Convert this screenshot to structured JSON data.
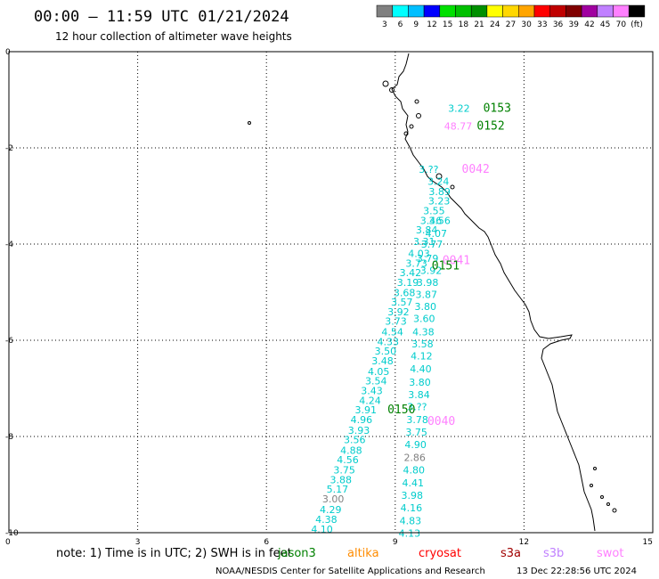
{
  "header": {
    "title": "00:00 – 11:59 UTC 01/21/2024",
    "subtitle": "12 hour collection of altimeter wave heights"
  },
  "colorbar": {
    "colors": [
      "#808080",
      "#00ffff",
      "#00bfff",
      "#0000ff",
      "#00e000",
      "#00c000",
      "#009000",
      "#ffff00",
      "#ffd700",
      "#ffa500",
      "#ff0000",
      "#c00000",
      "#800000",
      "#a000a0",
      "#c080ff",
      "#ff80ff",
      "#000000"
    ],
    "labels": [
      "3",
      "6",
      "9",
      "12",
      "15",
      "18",
      "21",
      "24",
      "27",
      "30",
      "33",
      "36",
      "39",
      "42",
      "45",
      "70",
      "(ft)"
    ]
  },
  "map": {
    "x_ticks": [
      "0",
      "3",
      "6",
      "9",
      "12",
      "15"
    ],
    "y_ticks": [
      "0",
      "-2",
      "-4",
      "-6",
      "-8",
      "-10"
    ],
    "x_range": [
      0,
      15
    ],
    "y_range": [
      -10,
      0
    ],
    "grid": "dotted"
  },
  "wave_labels": [
    {
      "x": 10.23,
      "y": -1.25,
      "text": "3.22",
      "color": "#00cccc"
    },
    {
      "x": 10.14,
      "y": -1.62,
      "text": "48.77",
      "color": "#ff80ff"
    },
    {
      "x": 9.55,
      "y": -2.52,
      "text": "3.??",
      "color": "#00cccc"
    },
    {
      "x": 9.75,
      "y": -2.77,
      "text": "3.24",
      "color": "#00cccc"
    },
    {
      "x": 9.78,
      "y": -2.98,
      "text": "3.89",
      "color": "#00cccc"
    },
    {
      "x": 9.77,
      "y": -3.18,
      "text": "3.23",
      "color": "#00cccc"
    },
    {
      "x": 9.65,
      "y": -3.38,
      "text": "3.55",
      "color": "#00cccc"
    },
    {
      "x": 9.58,
      "y": -3.58,
      "text": "3.46",
      "color": "#00cccc"
    },
    {
      "x": 9.48,
      "y": -3.78,
      "text": "3.84",
      "color": "#00cccc"
    },
    {
      "x": 9.78,
      "y": -3.58,
      "text": "3.56",
      "color": "#00cccc"
    },
    {
      "x": 9.7,
      "y": -3.85,
      "text": "4.07",
      "color": "#00cccc"
    },
    {
      "x": 9.42,
      "y": -4.02,
      "text": "3.31",
      "color": "#00cccc"
    },
    {
      "x": 9.6,
      "y": -4.07,
      "text": "3.77",
      "color": "#00cccc"
    },
    {
      "x": 9.3,
      "y": -4.27,
      "text": "4.03",
      "color": "#00cccc"
    },
    {
      "x": 9.5,
      "y": -4.37,
      "text": "3.79",
      "color": "#00cccc"
    },
    {
      "x": 9.24,
      "y": -4.47,
      "text": "3.73",
      "color": "#00cccc"
    },
    {
      "x": 9.58,
      "y": -4.62,
      "text": "3.92",
      "color": "#00cccc"
    },
    {
      "x": 9.1,
      "y": -4.67,
      "text": "3.42",
      "color": "#00cccc"
    },
    {
      "x": 9.04,
      "y": -4.87,
      "text": "3.19",
      "color": "#00cccc"
    },
    {
      "x": 9.5,
      "y": -4.87,
      "text": "3.98",
      "color": "#00cccc"
    },
    {
      "x": 8.96,
      "y": -5.08,
      "text": "3.68",
      "color": "#00cccc"
    },
    {
      "x": 9.47,
      "y": -5.12,
      "text": "3.87",
      "color": "#00cccc"
    },
    {
      "x": 8.9,
      "y": -5.28,
      "text": "3.57",
      "color": "#00cccc"
    },
    {
      "x": 9.45,
      "y": -5.37,
      "text": "3.80",
      "color": "#00cccc"
    },
    {
      "x": 8.82,
      "y": -5.48,
      "text": "3.92",
      "color": "#00cccc"
    },
    {
      "x": 9.42,
      "y": -5.62,
      "text": "3.60",
      "color": "#00cccc"
    },
    {
      "x": 8.76,
      "y": -5.68,
      "text": "3.73",
      "color": "#00cccc"
    },
    {
      "x": 9.4,
      "y": -5.9,
      "text": "4.38",
      "color": "#00cccc"
    },
    {
      "x": 8.68,
      "y": -5.9,
      "text": "4.54",
      "color": "#00cccc"
    },
    {
      "x": 8.58,
      "y": -6.1,
      "text": "4.33",
      "color": "#00cccc"
    },
    {
      "x": 9.38,
      "y": -6.15,
      "text": "3.58",
      "color": "#00cccc"
    },
    {
      "x": 8.52,
      "y": -6.3,
      "text": "3.50",
      "color": "#00cccc"
    },
    {
      "x": 9.36,
      "y": -6.4,
      "text": "4.12",
      "color": "#00cccc"
    },
    {
      "x": 8.45,
      "y": -6.5,
      "text": "3.48",
      "color": "#00cccc"
    },
    {
      "x": 9.34,
      "y": -6.67,
      "text": "4.40",
      "color": "#00cccc"
    },
    {
      "x": 8.36,
      "y": -6.72,
      "text": "4.05",
      "color": "#00cccc"
    },
    {
      "x": 8.3,
      "y": -6.92,
      "text": "3.54",
      "color": "#00cccc"
    },
    {
      "x": 9.32,
      "y": -6.94,
      "text": "3.80",
      "color": "#00cccc"
    },
    {
      "x": 8.2,
      "y": -7.12,
      "text": "3.43",
      "color": "#00cccc"
    },
    {
      "x": 9.3,
      "y": -7.2,
      "text": "3.84",
      "color": "#00cccc"
    },
    {
      "x": 8.16,
      "y": -7.32,
      "text": "4.24",
      "color": "#00cccc"
    },
    {
      "x": 9.28,
      "y": -7.45,
      "text": "3.??",
      "color": "#00cccc"
    },
    {
      "x": 8.06,
      "y": -7.52,
      "text": "3.91",
      "color": "#00cccc"
    },
    {
      "x": 9.26,
      "y": -7.72,
      "text": "3.78",
      "color": "#00cccc"
    },
    {
      "x": 7.96,
      "y": -7.72,
      "text": "4.96",
      "color": "#00cccc"
    },
    {
      "x": 7.9,
      "y": -7.94,
      "text": "3.93",
      "color": "#00cccc"
    },
    {
      "x": 9.24,
      "y": -7.98,
      "text": "3.75",
      "color": "#00cccc"
    },
    {
      "x": 7.8,
      "y": -8.14,
      "text": "3.56",
      "color": "#00cccc"
    },
    {
      "x": 9.22,
      "y": -8.24,
      "text": "4.90",
      "color": "#00cccc"
    },
    {
      "x": 7.72,
      "y": -8.36,
      "text": "4.88",
      "color": "#00cccc"
    },
    {
      "x": 9.2,
      "y": -8.51,
      "text": "2.86",
      "color": "#808080"
    },
    {
      "x": 7.64,
      "y": -8.56,
      "text": "4.56",
      "color": "#00cccc"
    },
    {
      "x": 7.56,
      "y": -8.77,
      "text": "3.75",
      "color": "#00cccc"
    },
    {
      "x": 9.18,
      "y": -8.77,
      "text": "4.80",
      "color": "#00cccc"
    },
    {
      "x": 7.48,
      "y": -8.97,
      "text": "3.88",
      "color": "#00cccc"
    },
    {
      "x": 9.16,
      "y": -9.04,
      "text": "4.41",
      "color": "#00cccc"
    },
    {
      "x": 7.4,
      "y": -9.17,
      "text": "5.17",
      "color": "#00cccc"
    },
    {
      "x": 9.14,
      "y": -9.3,
      "text": "3.98",
      "color": "#00cccc"
    },
    {
      "x": 7.3,
      "y": -9.37,
      "text": "3.00",
      "color": "#808080"
    },
    {
      "x": 7.24,
      "y": -9.59,
      "text": "4.29",
      "color": "#00cccc"
    },
    {
      "x": 9.12,
      "y": -9.56,
      "text": "4.16",
      "color": "#00cccc"
    },
    {
      "x": 7.14,
      "y": -9.8,
      "text": "4.38",
      "color": "#00cccc"
    },
    {
      "x": 9.1,
      "y": -9.82,
      "text": "4.83",
      "color": "#00cccc"
    },
    {
      "x": 7.04,
      "y": -10.0,
      "text": "4.10",
      "color": "#00cccc"
    },
    {
      "x": 9.08,
      "y": -10.08,
      "text": "4.13",
      "color": "#00cccc"
    }
  ],
  "pass_labels": [
    {
      "x": 11.05,
      "y": -1.25,
      "text": "0153",
      "color": "#008000"
    },
    {
      "x": 10.9,
      "y": -1.62,
      "text": "0152",
      "color": "#008000"
    },
    {
      "x": 10.55,
      "y": -2.52,
      "text": "0042",
      "color": "#ff80ff"
    },
    {
      "x": 10.1,
      "y": -4.42,
      "text": "0041",
      "color": "#ff80ff"
    },
    {
      "x": 9.85,
      "y": -4.53,
      "text": "0151",
      "color": "#008000"
    },
    {
      "x": 8.82,
      "y": -7.52,
      "text": "0150",
      "color": "#008000"
    },
    {
      "x": 9.75,
      "y": -7.76,
      "text": "0040",
      "color": "#ff80ff"
    }
  ],
  "footer": {
    "note": "note:  1) Time is in UTC; 2) SWH is in feet",
    "satellites": [
      {
        "name": "jason3",
        "color": "#008000"
      },
      {
        "name": "altika",
        "color": "#ff8c00"
      },
      {
        "name": "cryosat",
        "color": "#ff0000"
      },
      {
        "name": "s3a",
        "color": "#a00000"
      },
      {
        "name": "s3b",
        "color": "#c080ff"
      },
      {
        "name": "swot",
        "color": "#ff80ff"
      }
    ],
    "credit": "NOAA/NESDIS Center for Satellite Applications and Research",
    "timestamp": "13 Dec 22:28:56 UTC 2024"
  }
}
